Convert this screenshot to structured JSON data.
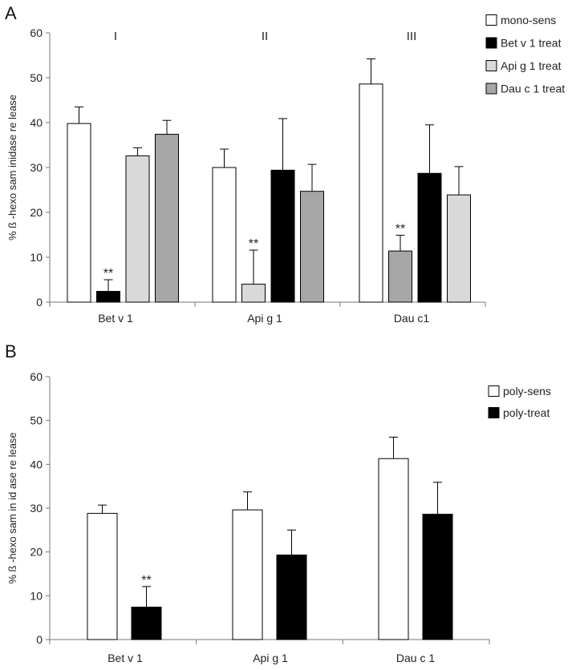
{
  "chart_data": [
    {
      "panel": "A",
      "type": "bar",
      "ylabel": "% ß -hexo sam inidase  re lease",
      "ylim": [
        0,
        60
      ],
      "yticks": [
        0,
        10,
        20,
        30,
        40,
        50,
        60
      ],
      "categories": [
        "Bet v 1",
        "Api g 1",
        "Dau c1"
      ],
      "group_labels": [
        "I",
        "II",
        "III"
      ],
      "legend": [
        {
          "name": "mono-sens",
          "color": "#ffffff"
        },
        {
          "name": "Bet v 1 treat",
          "color": "#000000"
        },
        {
          "name": "Api g 1 treat",
          "color": "#d9d9d9"
        },
        {
          "name": "Dau c 1 treat",
          "color": "#a6a6a6"
        }
      ],
      "groups": [
        {
          "bars": [
            {
              "series": "mono-sens",
              "value": 39.8,
              "err": 3.7,
              "color": "#ffffff"
            },
            {
              "series": "Bet v 1 treat",
              "value": 2.4,
              "err": 2.6,
              "color": "#000000",
              "sig": "**"
            },
            {
              "series": "Api g 1 treat",
              "value": 32.6,
              "err": 1.8,
              "color": "#d9d9d9"
            },
            {
              "series": "Dau c 1 treat",
              "value": 37.4,
              "err": 3.1,
              "color": "#a6a6a6"
            }
          ]
        },
        {
          "bars": [
            {
              "series": "mono-sens",
              "value": 30.0,
              "err": 4.1,
              "color": "#ffffff"
            },
            {
              "series": "Api g 1 treat",
              "value": 4.0,
              "err": 7.6,
              "color": "#d9d9d9",
              "sig": "**"
            },
            {
              "series": "Bet v 1 treat",
              "value": 29.4,
              "err": 11.5,
              "color": "#000000"
            },
            {
              "series": "Dau c 1 treat",
              "value": 24.7,
              "err": 6.0,
              "color": "#a6a6a6"
            }
          ]
        },
        {
          "bars": [
            {
              "series": "mono-sens",
              "value": 48.6,
              "err": 5.6,
              "color": "#ffffff"
            },
            {
              "series": "Dau c 1 treat",
              "value": 11.4,
              "err": 3.5,
              "color": "#a6a6a6",
              "sig": "**"
            },
            {
              "series": "Bet v 1 treat",
              "value": 28.7,
              "err": 10.8,
              "color": "#000000"
            },
            {
              "series": "Api g 1 treat",
              "value": 23.9,
              "err": 6.3,
              "color": "#d9d9d9"
            }
          ]
        }
      ]
    },
    {
      "panel": "B",
      "type": "bar",
      "ylabel": "% ß -hexo sam in id ase   re lease",
      "ylim": [
        0,
        60
      ],
      "yticks": [
        0,
        10,
        20,
        30,
        40,
        50,
        60
      ],
      "categories": [
        "Bet v 1",
        "Api g 1",
        "Dau c 1"
      ],
      "legend": [
        {
          "name": "poly-sens",
          "color": "#ffffff"
        },
        {
          "name": "poly-treat",
          "color": "#000000"
        }
      ],
      "groups": [
        {
          "bars": [
            {
              "series": "poly-sens",
              "value": 28.8,
              "err": 1.9,
              "color": "#ffffff"
            },
            {
              "series": "poly-treat",
              "value": 7.4,
              "err": 4.7,
              "color": "#000000",
              "sig": "**"
            }
          ]
        },
        {
          "bars": [
            {
              "series": "poly-sens",
              "value": 29.6,
              "err": 4.1,
              "color": "#ffffff"
            },
            {
              "series": "poly-treat",
              "value": 19.3,
              "err": 5.7,
              "color": "#000000"
            }
          ]
        },
        {
          "bars": [
            {
              "series": "poly-sens",
              "value": 41.3,
              "err": 4.9,
              "color": "#ffffff"
            },
            {
              "series": "poly-treat",
              "value": 28.6,
              "err": 7.3,
              "color": "#000000"
            }
          ]
        }
      ]
    }
  ]
}
